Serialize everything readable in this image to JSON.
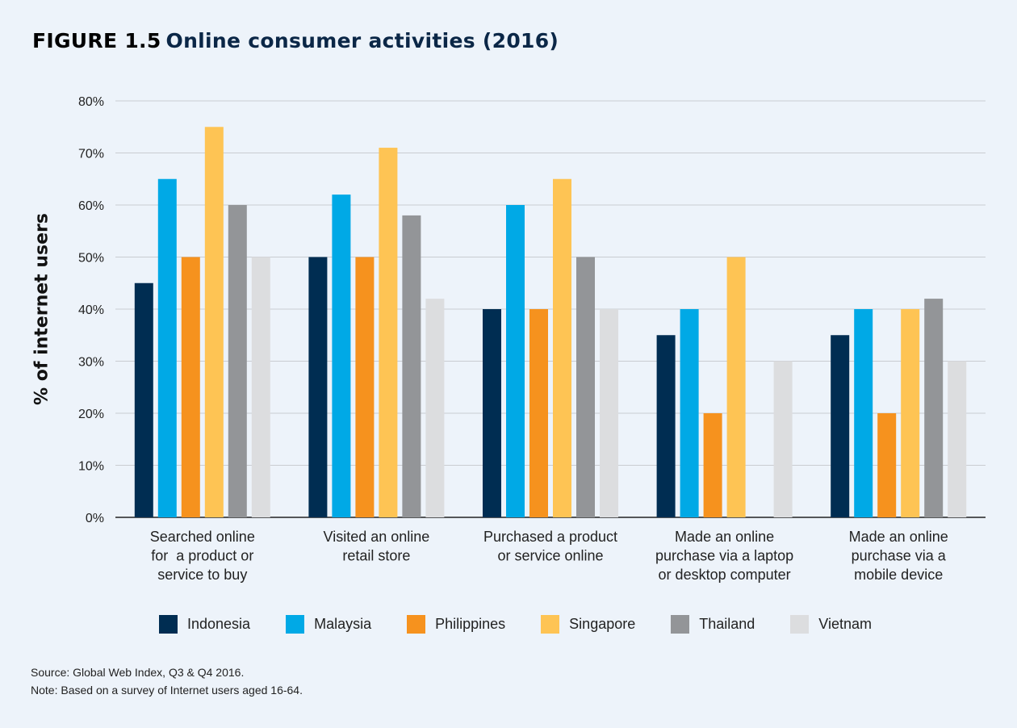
{
  "title": {
    "figure_number": "FIGURE 1.5",
    "text": "Online consumer activities (2016)"
  },
  "chart_data": {
    "type": "bar",
    "ylabel": "% of internet users",
    "ylim": [
      0,
      80
    ],
    "y_ticks": [
      "0%",
      "10%",
      "20%",
      "30%",
      "40%",
      "50%",
      "60%",
      "70%",
      "80%"
    ],
    "grid": true,
    "legend_position": "bottom",
    "categories": [
      [
        "Searched online",
        "for  a product or",
        "service to buy"
      ],
      [
        "Visited an online",
        "retail store"
      ],
      [
        "Purchased a product",
        "or service online"
      ],
      [
        "Made an online",
        "purchase via a laptop",
        "or desktop computer"
      ],
      [
        "Made an online",
        "purchase via a",
        "mobile device"
      ]
    ],
    "series": [
      {
        "name": "Indonesia",
        "color": "#002d52",
        "values": [
          45,
          50,
          40,
          35,
          35
        ]
      },
      {
        "name": "Malaysia",
        "color": "#00a9e6",
        "values": [
          65,
          62,
          60,
          40,
          40
        ]
      },
      {
        "name": "Philippines",
        "color": "#f6921e",
        "values": [
          50,
          50,
          40,
          20,
          20
        ]
      },
      {
        "name": "Singapore",
        "color": "#fec454",
        "values": [
          75,
          71,
          65,
          50,
          40
        ]
      },
      {
        "name": "Thailand",
        "color": "#939598",
        "values": [
          60,
          58,
          50,
          0,
          42
        ]
      },
      {
        "name": "Vietnam",
        "color": "#dcdddf",
        "values": [
          50,
          42,
          40,
          30,
          30
        ]
      }
    ]
  },
  "notes": {
    "source": "Source: Global Web Index, Q3 & Q4 2016.",
    "note": "Note: Based on a survey of Internet users aged 16-64."
  }
}
